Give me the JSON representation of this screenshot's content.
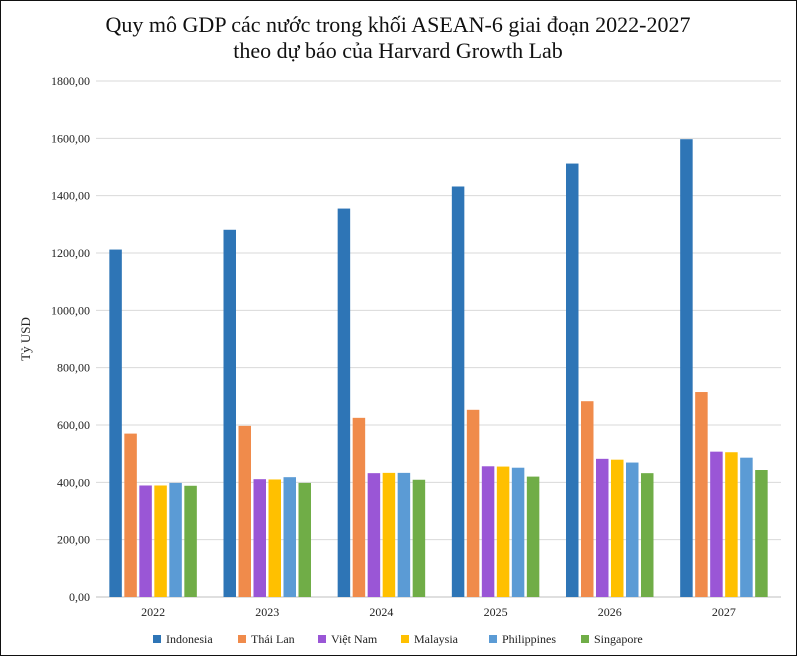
{
  "chart_data": {
    "type": "bar",
    "title": "Quy mô GDP các nước trong khối ASEAN-6 giai đoạn 2022-2027",
    "subtitle": "theo dự báo của Harvard Growth Lab",
    "xlabel": "",
    "ylabel": "Tỷ USD",
    "ylim": [
      0,
      1800
    ],
    "yticks": [
      0,
      200,
      400,
      600,
      800,
      1000,
      1200,
      1400,
      1600,
      1800
    ],
    "ytick_labels": [
      "0,00",
      "200,00",
      "400,00",
      "600,00",
      "800,00",
      "1000,00",
      "1200,00",
      "1400,00",
      "1600,00",
      "1800,00"
    ],
    "grid": true,
    "legend_position": "bottom",
    "categories": [
      "2022",
      "2023",
      "2024",
      "2025",
      "2026",
      "2027"
    ],
    "series": [
      {
        "name": "Indonesia",
        "color": "#2E75B6",
        "values": [
          1212,
          1281,
          1355,
          1432,
          1512,
          1597
        ]
      },
      {
        "name": "Thái Lan",
        "color": "#F08B4B",
        "values": [
          570,
          597,
          625,
          653,
          683,
          715
        ]
      },
      {
        "name": "Việt Nam",
        "color": "#9A56D6",
        "values": [
          389,
          411,
          432,
          456,
          482,
          507
        ]
      },
      {
        "name": "Malaysia",
        "color": "#FFC000",
        "values": [
          389,
          410,
          433,
          455,
          479,
          505
        ]
      },
      {
        "name": "Philippines",
        "color": "#5B9BD5",
        "values": [
          398,
          418,
          433,
          451,
          469,
          486
        ]
      },
      {
        "name": "Singapore",
        "color": "#70AD47",
        "values": [
          388,
          398,
          409,
          420,
          432,
          443
        ]
      }
    ]
  }
}
